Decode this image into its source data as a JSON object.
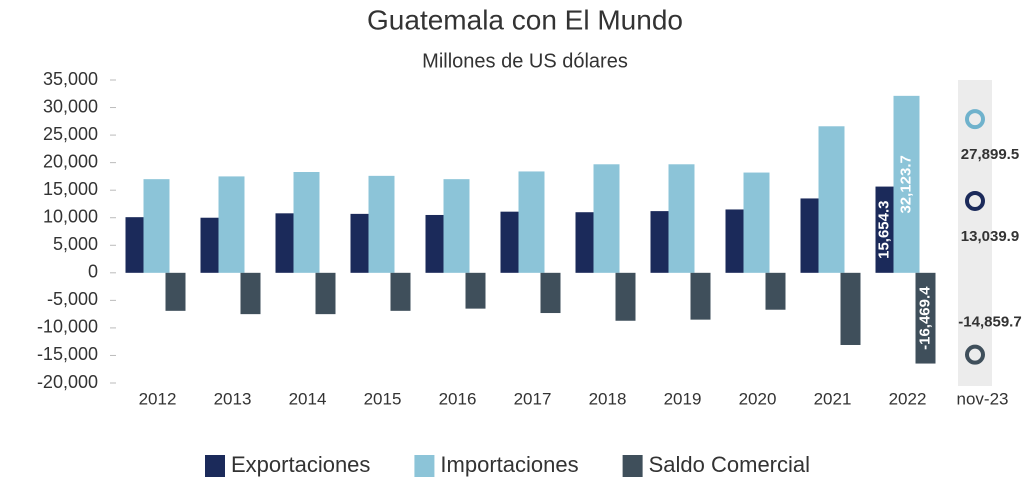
{
  "chart_data": {
    "type": "bar",
    "title": "Guatemala con El Mundo",
    "subtitle": "Millones de US dólares",
    "categories": [
      "2012",
      "2013",
      "2014",
      "2015",
      "2016",
      "2017",
      "2018",
      "2019",
      "2020",
      "2021",
      "2022",
      "nov-23"
    ],
    "series": [
      {
        "name": "Exportaciones",
        "color": "#1b2a5a",
        "values": [
          10100,
          10000,
          10800,
          10700,
          10500,
          11100,
          11000,
          11200,
          11500,
          13500,
          15654.3,
          13039.9
        ],
        "value_labels": [
          null,
          null,
          null,
          null,
          null,
          null,
          null,
          null,
          null,
          null,
          "15,654.3",
          "13,039.9"
        ]
      },
      {
        "name": "Importaciones",
        "color": "#8cc4d8",
        "values": [
          17000,
          17500,
          18300,
          17600,
          17000,
          18400,
          19700,
          19700,
          18200,
          26600,
          32123.7,
          27899.5
        ],
        "value_labels": [
          null,
          null,
          null,
          null,
          null,
          null,
          null,
          null,
          null,
          null,
          "32,123.7",
          "27,899.5"
        ]
      },
      {
        "name": "Saldo Comercial",
        "color": "#3f4f5b",
        "values": [
          -6900,
          -7500,
          -7500,
          -6900,
          -6500,
          -7300,
          -8700,
          -8500,
          -6700,
          -13100,
          -16469.4,
          -14859.7
        ],
        "value_labels": [
          null,
          null,
          null,
          null,
          null,
          null,
          null,
          null,
          null,
          null,
          "-16,469.4",
          "-14,859.7"
        ]
      }
    ],
    "ylim": [
      -20000,
      35000
    ],
    "yticks": [
      {
        "value": -20000,
        "label": "-20,000"
      },
      {
        "value": -15000,
        "label": "-15,000"
      },
      {
        "value": -10000,
        "label": "-10,000"
      },
      {
        "value": -5000,
        "label": "-5,000"
      },
      0,
      {
        "value": 5000,
        "label": "5,000"
      },
      {
        "value": 10000,
        "label": "10,000"
      },
      {
        "value": 15000,
        "label": "15,000"
      },
      {
        "value": 20000,
        "label": "20,000"
      },
      {
        "value": 25000,
        "label": "25,000"
      },
      {
        "value": 30000,
        "label": "30,000"
      },
      {
        "value": 35000,
        "label": "35,000"
      }
    ],
    "legend": "bottom"
  }
}
